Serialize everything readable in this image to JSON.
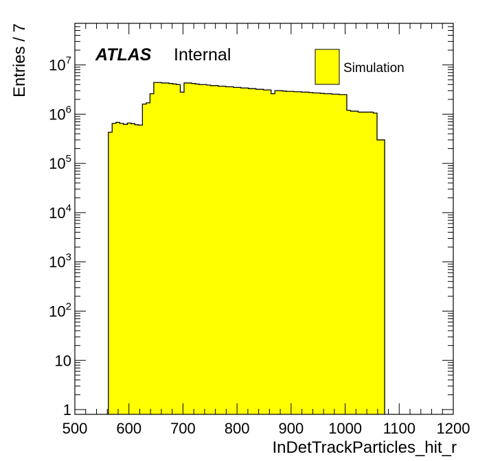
{
  "chart_data": {
    "type": "histogram",
    "title": "",
    "xlabel": "InDetTrackParticles_hit_r",
    "ylabel": "Entries / 7",
    "xlim": [
      500,
      1200
    ],
    "ylim": [
      0.8,
      70000000
    ],
    "y_scale": "log",
    "grid": false,
    "legend_position": "top-right",
    "bin_width": 7,
    "fill_color": "#ffff00",
    "x_ticks": [
      "500",
      "600",
      "700",
      "800",
      "900",
      "1000",
      "1100",
      "1200"
    ],
    "y_ticks": [
      {
        "value": 1,
        "base": "1",
        "exp": ""
      },
      {
        "value": 10,
        "base": "10",
        "exp": ""
      },
      {
        "value": 100,
        "base": "10",
        "exp": "2"
      },
      {
        "value": 1000,
        "base": "10",
        "exp": "3"
      },
      {
        "value": 10000,
        "base": "10",
        "exp": "4"
      },
      {
        "value": 100000,
        "base": "10",
        "exp": "5"
      },
      {
        "value": 1000000,
        "base": "10",
        "exp": "6"
      },
      {
        "value": 10000000,
        "base": "10",
        "exp": "7"
      }
    ],
    "series": [
      {
        "name": "Simulation",
        "bins": [
          [
            562,
            430000
          ],
          [
            569,
            650000
          ],
          [
            576,
            680000
          ],
          [
            583,
            650000
          ],
          [
            590,
            620000
          ],
          [
            597,
            660000
          ],
          [
            604,
            640000
          ],
          [
            611,
            610000
          ],
          [
            618,
            600000
          ],
          [
            625,
            1600000
          ],
          [
            632,
            1700000
          ],
          [
            639,
            2600000
          ],
          [
            646,
            4400000
          ],
          [
            653,
            4400000
          ],
          [
            660,
            4300000
          ],
          [
            667,
            4300000
          ],
          [
            674,
            4200000
          ],
          [
            681,
            4100000
          ],
          [
            688,
            4000000
          ],
          [
            695,
            2800000
          ],
          [
            702,
            4300000
          ],
          [
            709,
            4300000
          ],
          [
            716,
            4200000
          ],
          [
            723,
            4100000
          ],
          [
            730,
            4000000
          ],
          [
            737,
            4000000
          ],
          [
            744,
            3900000
          ],
          [
            751,
            3800000
          ],
          [
            758,
            3800000
          ],
          [
            765,
            3700000
          ],
          [
            772,
            3700000
          ],
          [
            779,
            3600000
          ],
          [
            786,
            3600000
          ],
          [
            793,
            3500000
          ],
          [
            800,
            3500000
          ],
          [
            807,
            3400000
          ],
          [
            814,
            3400000
          ],
          [
            821,
            3300000
          ],
          [
            828,
            3300000
          ],
          [
            835,
            3200000
          ],
          [
            842,
            3200000
          ],
          [
            849,
            3100000
          ],
          [
            856,
            3100000
          ],
          [
            863,
            2600000
          ],
          [
            870,
            3000000
          ],
          [
            877,
            3000000
          ],
          [
            884,
            2950000
          ],
          [
            891,
            2900000
          ],
          [
            898,
            2900000
          ],
          [
            905,
            2850000
          ],
          [
            912,
            2850000
          ],
          [
            919,
            2800000
          ],
          [
            926,
            2800000
          ],
          [
            933,
            2750000
          ],
          [
            940,
            2700000
          ],
          [
            947,
            2700000
          ],
          [
            954,
            2650000
          ],
          [
            961,
            2600000
          ],
          [
            968,
            2600000
          ],
          [
            975,
            2550000
          ],
          [
            982,
            2550000
          ],
          [
            989,
            2500000
          ],
          [
            996,
            2500000
          ],
          [
            1003,
            1200000
          ],
          [
            1010,
            1150000
          ],
          [
            1017,
            1150000
          ],
          [
            1024,
            1100000
          ],
          [
            1031,
            1100000
          ],
          [
            1038,
            1100000
          ],
          [
            1045,
            1100000
          ],
          [
            1052,
            1050000
          ],
          [
            1059,
            300000
          ],
          [
            1066,
            300000
          ]
        ]
      }
    ]
  },
  "labels": {
    "atlas": "ATLAS",
    "status": "Internal"
  }
}
